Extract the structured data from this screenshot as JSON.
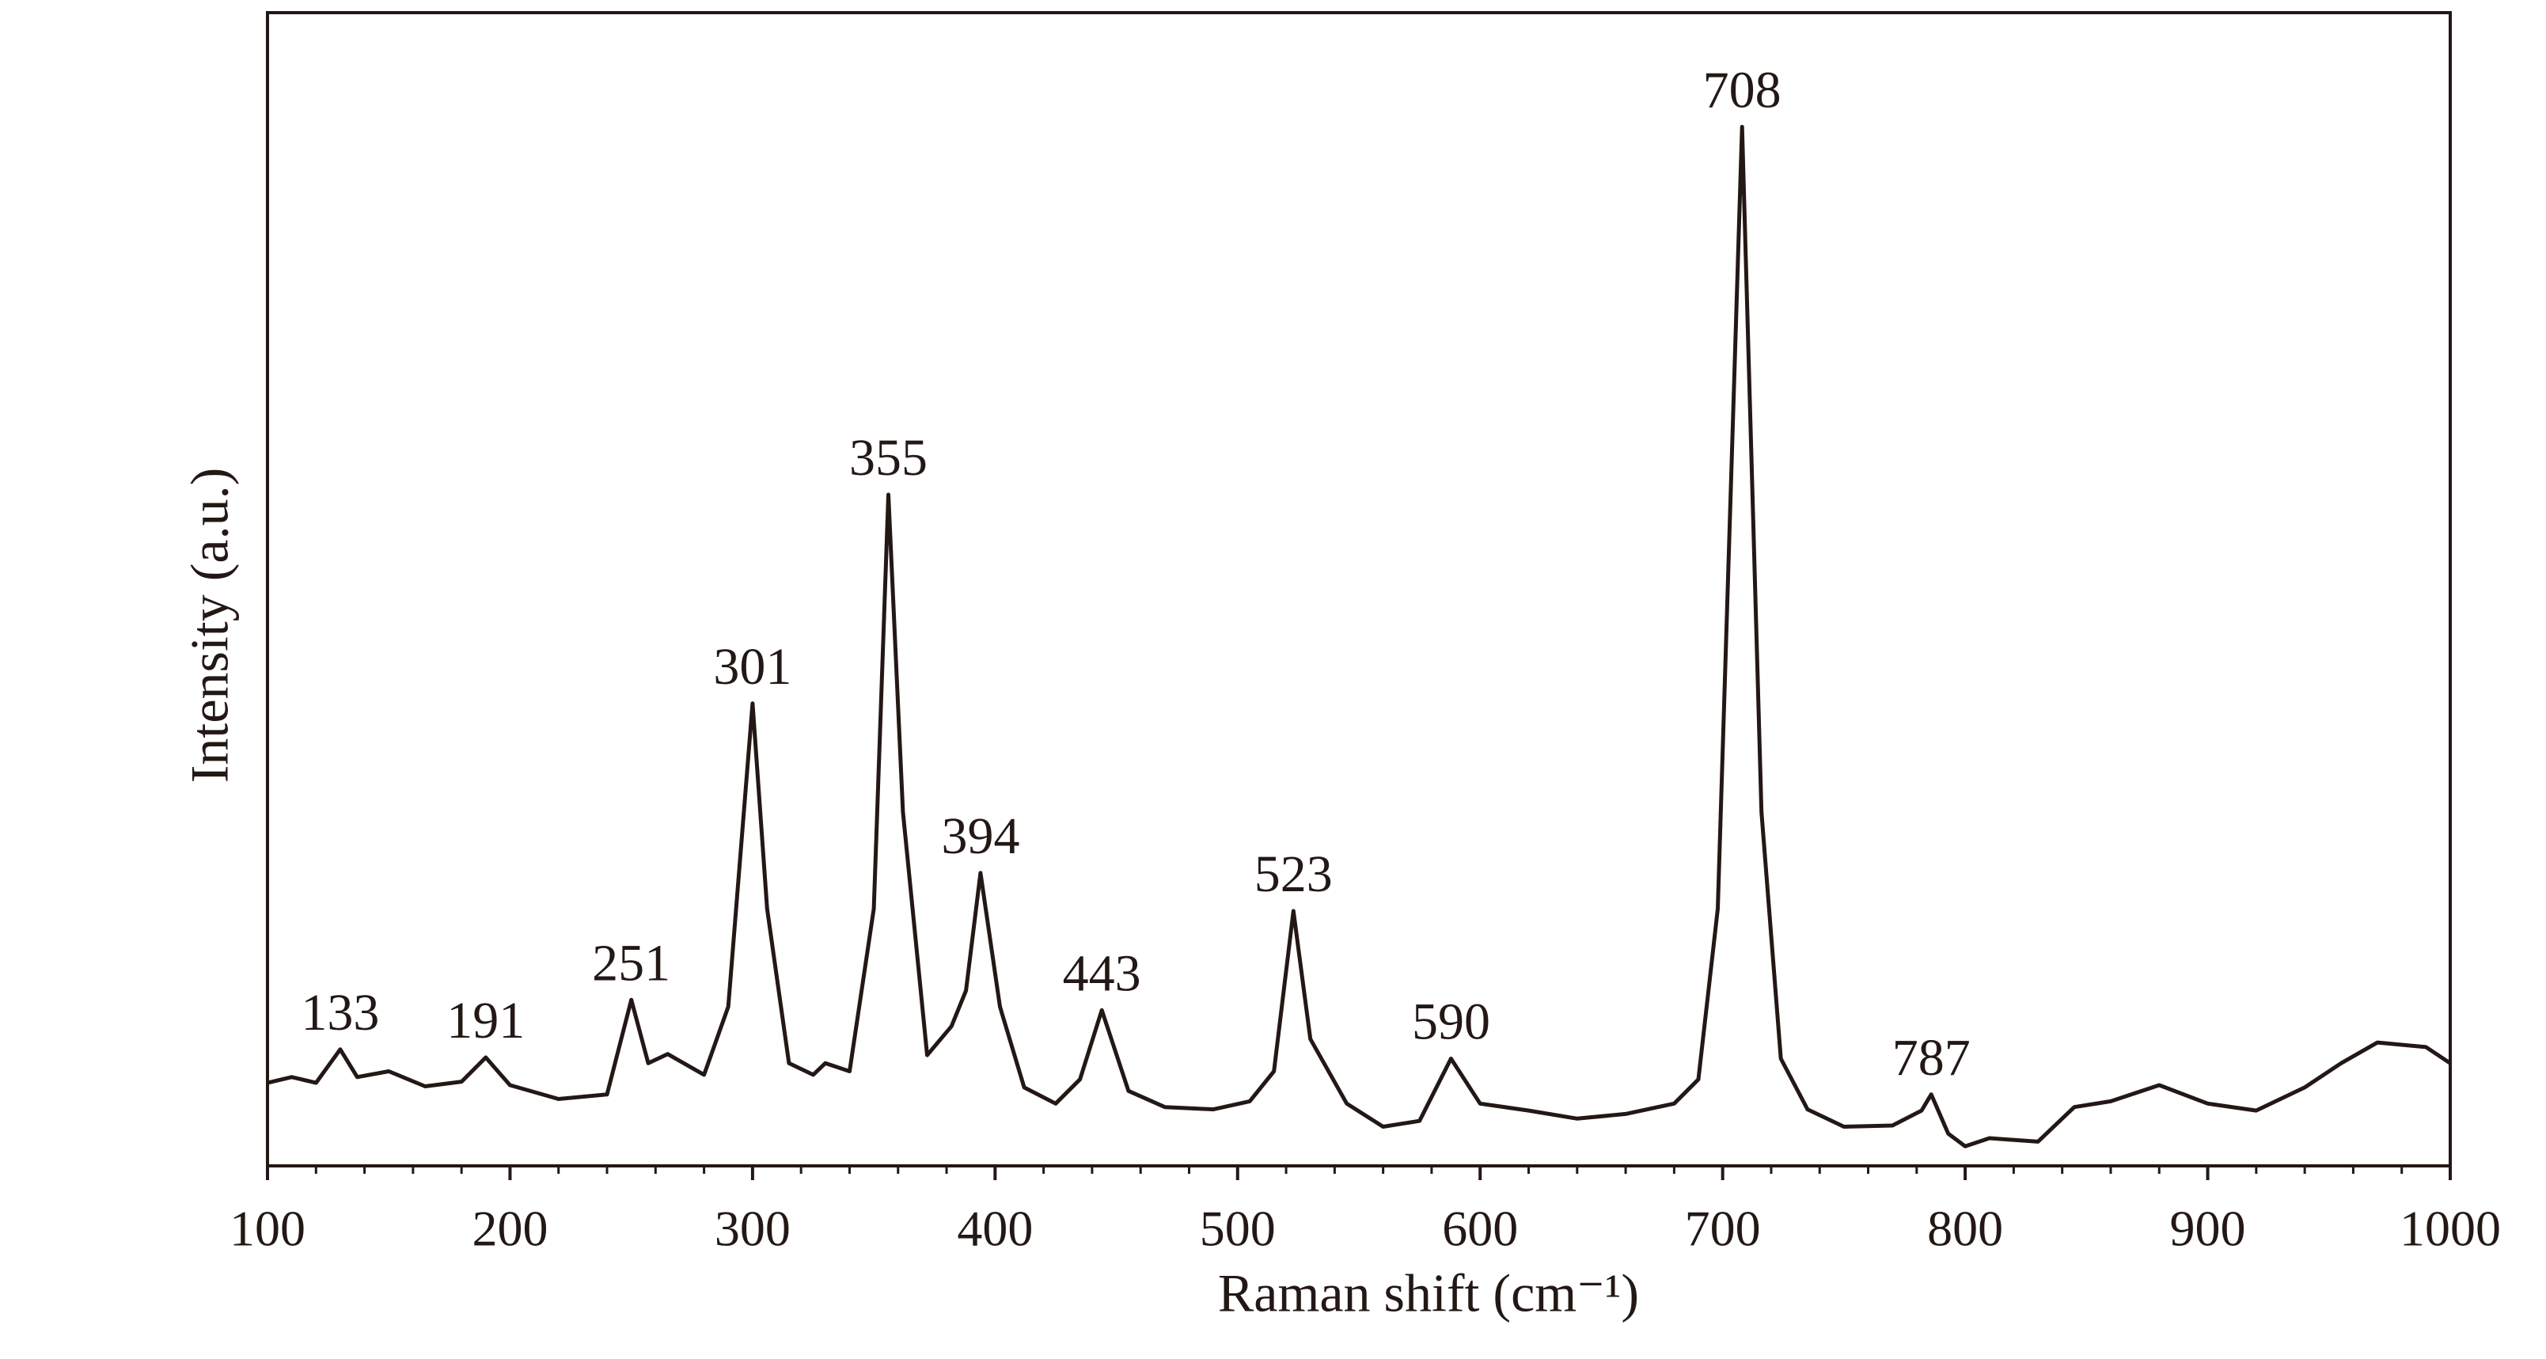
{
  "chart_data": {
    "type": "line",
    "xlabel": "Raman shift  (cm⁻¹)",
    "ylabel": "Intensity (a.u.)",
    "x": [
      100,
      110,
      120,
      130,
      137,
      150,
      165,
      180,
      190,
      200,
      220,
      240,
      250,
      257,
      265,
      280,
      290,
      300,
      306,
      315,
      325,
      330,
      340,
      350,
      356,
      362,
      372,
      382,
      388,
      394,
      402,
      412,
      425,
      435,
      444,
      455,
      470,
      490,
      505,
      515,
      523,
      530,
      545,
      560,
      575,
      588,
      600,
      620,
      640,
      660,
      680,
      690,
      698,
      708,
      716,
      724,
      735,
      750,
      770,
      782,
      786,
      793,
      800,
      810,
      830,
      845,
      860,
      880,
      900,
      920,
      940,
      955,
      970,
      990,
      1000
    ],
    "values": [
      7.2,
      7.7,
      7.2,
      10.1,
      7.7,
      8.2,
      6.9,
      7.3,
      9.4,
      7.0,
      5.8,
      6.2,
      14.4,
      8.9,
      9.7,
      7.9,
      13.8,
      40.1,
      22.3,
      8.9,
      7.9,
      8.9,
      8.2,
      22.3,
      58.2,
      30.7,
      9.6,
      12.1,
      15.2,
      25.4,
      13.8,
      6.8,
      5.4,
      7.5,
      13.5,
      6.5,
      5.1,
      4.9,
      5.6,
      8.2,
      22.1,
      11.0,
      5.4,
      3.4,
      3.9,
      9.3,
      5.4,
      4.8,
      4.1,
      4.5,
      5.4,
      7.5,
      22.3,
      90.1,
      30.7,
      9.3,
      4.9,
      3.4,
      3.5,
      4.8,
      6.2,
      2.8,
      1.7,
      2.4,
      2.1,
      5.1,
      5.6,
      7.0,
      5.4,
      4.8,
      6.8,
      8.9,
      10.7,
      10.3,
      8.9
    ],
    "color": "#231815",
    "xlim": [
      100,
      1000
    ],
    "ylim": [
      0,
      100
    ],
    "xticks": [
      100,
      200,
      300,
      400,
      500,
      600,
      700,
      800,
      900,
      1000
    ],
    "xminorticks": [
      120,
      140,
      160,
      180,
      220,
      240,
      260,
      280,
      320,
      340,
      360,
      380,
      420,
      440,
      460,
      480,
      520,
      540,
      560,
      580,
      620,
      640,
      660,
      680,
      720,
      740,
      760,
      780,
      820,
      840,
      860,
      880,
      920,
      940,
      960,
      980
    ],
    "annotations": [
      {
        "text": "133",
        "x": 130,
        "y": 10.1
      },
      {
        "text": "191",
        "x": 190,
        "y": 9.4
      },
      {
        "text": "251",
        "x": 250,
        "y": 14.4
      },
      {
        "text": "301",
        "x": 300,
        "y": 40.1
      },
      {
        "text": "355",
        "x": 356,
        "y": 58.2
      },
      {
        "text": "394",
        "x": 394,
        "y": 25.4
      },
      {
        "text": "443",
        "x": 444,
        "y": 13.5
      },
      {
        "text": "523",
        "x": 523,
        "y": 22.1
      },
      {
        "text": "590",
        "x": 588,
        "y": 9.3
      },
      {
        "text": "708",
        "x": 708,
        "y": 90.1
      },
      {
        "text": "787",
        "x": 786,
        "y": 6.2
      }
    ]
  }
}
